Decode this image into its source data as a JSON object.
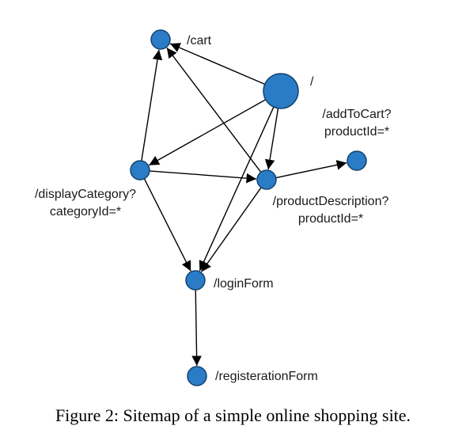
{
  "diagram": {
    "nodes": [
      {
        "id": "root",
        "label_lines": [
          "/"
        ]
      },
      {
        "id": "cart",
        "label_lines": [
          "/cart"
        ]
      },
      {
        "id": "addToCart",
        "label_lines": [
          "/addToCart?",
          "productId=*"
        ]
      },
      {
        "id": "displayCategory",
        "label_lines": [
          "/displayCategory?",
          "categoryId=*"
        ]
      },
      {
        "id": "productDescription",
        "label_lines": [
          "/productDescription?",
          "productId=*"
        ]
      },
      {
        "id": "loginForm",
        "label_lines": [
          "/loginForm"
        ]
      },
      {
        "id": "registerationForm",
        "label_lines": [
          "/registerationForm"
        ]
      }
    ],
    "edges": [
      {
        "from": "root",
        "to": "cart"
      },
      {
        "from": "root",
        "to": "displayCategory"
      },
      {
        "from": "root",
        "to": "productDescription"
      },
      {
        "from": "root",
        "to": "loginForm"
      },
      {
        "from": "displayCategory",
        "to": "cart"
      },
      {
        "from": "displayCategory",
        "to": "productDescription"
      },
      {
        "from": "displayCategory",
        "to": "loginForm"
      },
      {
        "from": "productDescription",
        "to": "cart"
      },
      {
        "from": "productDescription",
        "to": "addToCart"
      },
      {
        "from": "productDescription",
        "to": "loginForm"
      },
      {
        "from": "loginForm",
        "to": "registerationForm"
      }
    ]
  },
  "caption": "Figure 2: Sitemap of a simple online shopping site."
}
